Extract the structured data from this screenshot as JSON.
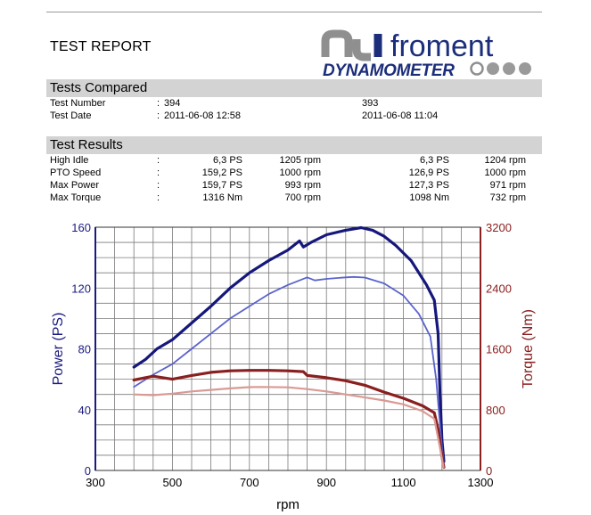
{
  "report": {
    "title": "TEST REPORT",
    "logo": {
      "brand": "froment",
      "product": "DYNAMOMETER"
    }
  },
  "tests_compared": {
    "heading": "Tests Compared",
    "rows": [
      {
        "label": "Test Number",
        "sep": ":",
        "a": "394",
        "b": "393"
      },
      {
        "label": "Test Date",
        "sep": ":",
        "a": "2011-06-08 12:58",
        "b": "2011-06-08 11:04"
      }
    ]
  },
  "test_results": {
    "heading": "Test Results",
    "rows": [
      {
        "label": "High Idle",
        "sep": ":",
        "a_val": "6,3 PS",
        "a_rpm": "1205 rpm",
        "b_val": "6,3 PS",
        "b_rpm": "1204 rpm"
      },
      {
        "label": "PTO Speed",
        "sep": ":",
        "a_val": "159,2 PS",
        "a_rpm": "1000 rpm",
        "b_val": "126,9 PS",
        "b_rpm": "1000 rpm"
      },
      {
        "label": "Max Power",
        "sep": ":",
        "a_val": "159,7 PS",
        "a_rpm": "993 rpm",
        "b_val": "127,3 PS",
        "b_rpm": "971 rpm"
      },
      {
        "label": "Max Torque",
        "sep": ":",
        "a_val": "1316 Nm",
        "a_rpm": "700 rpm",
        "b_val": "1098 Nm",
        "b_rpm": "732 rpm"
      }
    ]
  },
  "chart_data": {
    "type": "line",
    "xlabel": "rpm",
    "ylabel": "Power (PS)",
    "y2label": "Torque (Nm)",
    "xlim": [
      300,
      1300
    ],
    "ylim": [
      0,
      160
    ],
    "y2lim": [
      0,
      3200
    ],
    "x_ticks": [
      "300",
      "500",
      "700",
      "900",
      "1100",
      "1300"
    ],
    "y_ticks": [
      "0",
      "40",
      "80",
      "120",
      "160"
    ],
    "y2_ticks": [
      "0",
      "800",
      "1600",
      "2400",
      "3200"
    ],
    "grid": true,
    "colors": {
      "power_a": "#15187a",
      "power_b": "#5b63cc",
      "torque_a": "#8a1f1f",
      "torque_b": "#d99a94",
      "axis_left": "#1a1a80",
      "axis_right": "#8b2020"
    },
    "series": [
      {
        "id": "power_a",
        "axis": "left",
        "x": [
          400,
          430,
          460,
          500,
          550,
          600,
          650,
          700,
          750,
          800,
          830,
          840,
          860,
          900,
          950,
          990,
          1020,
          1050,
          1080,
          1120,
          1160,
          1180,
          1190,
          1195,
          1200,
          1205
        ],
        "y": [
          68,
          73,
          80,
          86,
          97,
          108,
          120,
          130,
          138,
          145,
          151,
          147,
          150,
          155,
          158,
          159.7,
          158,
          154,
          148,
          138,
          122,
          112,
          90,
          50,
          20,
          6
        ]
      },
      {
        "id": "power_b",
        "axis": "left",
        "x": [
          400,
          450,
          500,
          550,
          600,
          650,
          700,
          750,
          800,
          850,
          870,
          900,
          950,
          971,
          1000,
          1050,
          1100,
          1140,
          1170,
          1185,
          1195,
          1200,
          1204
        ],
        "y": [
          55,
          63,
          70,
          80,
          90,
          100,
          108,
          116,
          122,
          127,
          125,
          126,
          127,
          127.3,
          126.9,
          123,
          115,
          103,
          88,
          60,
          30,
          15,
          6
        ]
      },
      {
        "id": "torque_a",
        "axis": "right",
        "x": [
          400,
          450,
          500,
          550,
          600,
          650,
          700,
          750,
          800,
          840,
          850,
          900,
          950,
          1000,
          1050,
          1100,
          1150,
          1180,
          1190,
          1200,
          1205
        ],
        "y": [
          1190,
          1240,
          1200,
          1250,
          1290,
          1310,
          1316,
          1316,
          1310,
          1300,
          1250,
          1220,
          1180,
          1120,
          1030,
          950,
          850,
          760,
          540,
          180,
          40
        ]
      },
      {
        "id": "torque_b",
        "axis": "right",
        "x": [
          400,
          450,
          500,
          550,
          600,
          650,
          700,
          732,
          800,
          850,
          900,
          950,
          1000,
          1050,
          1100,
          1150,
          1180,
          1195,
          1204
        ],
        "y": [
          1000,
          990,
          1010,
          1040,
          1060,
          1080,
          1096,
          1098,
          1094,
          1070,
          1040,
          1000,
          960,
          920,
          870,
          780,
          680,
          300,
          40
        ]
      }
    ]
  }
}
